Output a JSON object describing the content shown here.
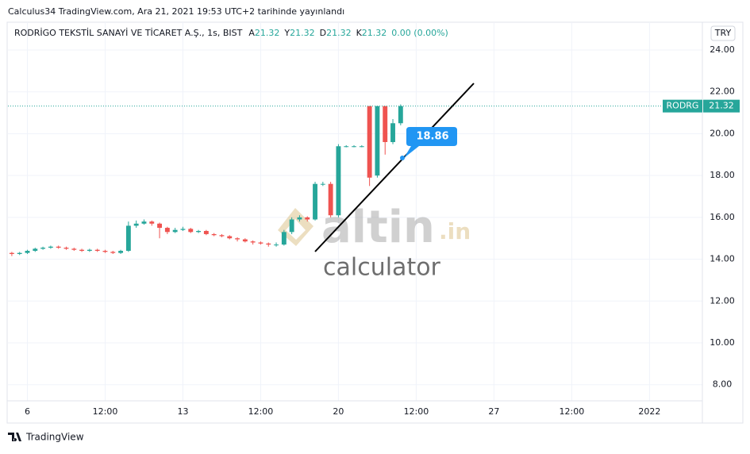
{
  "page": {
    "published": "Calculus34 TradingView.com, Ara 21, 2021 19:53 UTC+2 tarihinde yayınlandı",
    "brand": "TradingView"
  },
  "chart_data": {
    "type": "candlestick",
    "title": "RODRİGO TEKSTİL SANAYİ VE TİCARET A.Ş., 1s, BIST",
    "ohlc_legend": [
      {
        "label": "A",
        "value": "21.32"
      },
      {
        "label": "Y",
        "value": "21.32"
      },
      {
        "label": "D",
        "value": "21.32"
      },
      {
        "label": "K",
        "value": "21.32"
      }
    ],
    "change": "0.00 (0.00%)",
    "currency": "TRY",
    "symbol": "RODRG",
    "up_color": "#26a69a",
    "down_color": "#ef5350",
    "open": [
      14.3,
      14.25,
      14.3,
      14.4,
      14.5,
      14.55,
      14.6,
      14.55,
      14.5,
      14.45,
      14.4,
      14.45,
      14.4,
      14.35,
      14.3,
      14.4,
      15.6,
      15.7,
      15.8,
      15.7,
      15.5,
      15.3,
      15.4,
      15.45,
      15.3,
      15.35,
      15.2,
      15.15,
      15.1,
      15.0,
      14.95,
      14.85,
      14.8,
      14.75,
      14.7,
      14.7,
      15.3,
      15.9,
      16.0,
      15.9,
      17.6,
      17.6,
      16.1,
      19.4,
      19.4,
      19.4,
      21.32,
      18.0,
      21.32,
      19.6,
      20.5
    ],
    "high": [
      14.35,
      14.35,
      14.45,
      14.55,
      14.6,
      14.65,
      14.65,
      14.6,
      14.55,
      14.5,
      14.5,
      14.5,
      14.45,
      14.4,
      14.45,
      15.8,
      15.85,
      15.9,
      15.85,
      15.75,
      15.55,
      15.5,
      15.55,
      15.5,
      15.4,
      15.4,
      15.25,
      15.2,
      15.15,
      15.05,
      15.0,
      14.9,
      14.85,
      14.8,
      14.8,
      15.4,
      16.0,
      16.1,
      16.05,
      17.7,
      17.7,
      17.7,
      19.5,
      19.45,
      19.45,
      19.45,
      21.32,
      21.32,
      21.32,
      20.7,
      21.4
    ],
    "low": [
      14.15,
      14.2,
      14.25,
      14.35,
      14.45,
      14.5,
      14.5,
      14.45,
      14.4,
      14.35,
      14.35,
      14.35,
      14.3,
      14.25,
      14.25,
      14.35,
      15.5,
      15.65,
      15.6,
      15.0,
      15.2,
      15.25,
      15.35,
      15.25,
      15.25,
      15.15,
      15.1,
      15.05,
      14.95,
      14.85,
      14.8,
      14.7,
      14.7,
      14.6,
      14.6,
      14.65,
      15.2,
      15.8,
      15.8,
      15.85,
      17.5,
      16.0,
      16.0,
      19.35,
      19.35,
      19.35,
      17.5,
      17.9,
      19.0,
      19.5,
      20.4
    ],
    "close": [
      14.25,
      14.3,
      14.4,
      14.5,
      14.55,
      14.6,
      14.55,
      14.5,
      14.45,
      14.4,
      14.45,
      14.4,
      14.35,
      14.3,
      14.4,
      15.6,
      15.7,
      15.8,
      15.7,
      15.5,
      15.3,
      15.4,
      15.45,
      15.3,
      15.35,
      15.2,
      15.15,
      15.1,
      15.0,
      14.95,
      14.85,
      14.8,
      14.75,
      14.7,
      14.7,
      15.3,
      15.9,
      16.0,
      15.9,
      17.6,
      17.6,
      16.1,
      19.4,
      19.4,
      19.4,
      19.4,
      17.9,
      21.32,
      19.6,
      20.5,
      21.32
    ],
    "xlim": [
      -0.5,
      88.8
    ],
    "xticks": [
      {
        "value": 2,
        "label": "6"
      },
      {
        "value": 12,
        "label": "12:00"
      },
      {
        "value": 22,
        "label": "13"
      },
      {
        "value": 32,
        "label": "12:00"
      },
      {
        "value": 42,
        "label": "20"
      },
      {
        "value": 52,
        "label": "12:00"
      },
      {
        "value": 62,
        "label": "27"
      },
      {
        "value": 72,
        "label": "12:00"
      },
      {
        "value": 82,
        "label": "2022"
      }
    ],
    "ylim": [
      7.23,
      24.57
    ],
    "yticks": [
      {
        "value": 8,
        "label": "8.00"
      },
      {
        "value": 10,
        "label": "10.00"
      },
      {
        "value": 12,
        "label": "12.00"
      },
      {
        "value": 14,
        "label": "14.00"
      },
      {
        "value": 16,
        "label": "16.00"
      },
      {
        "value": 18,
        "label": "18.00"
      },
      {
        "value": 20,
        "label": "20.00"
      },
      {
        "value": 22,
        "label": "22.00"
      },
      {
        "value": 24,
        "label": "24.00"
      }
    ],
    "grid": true,
    "annotation": "18.86",
    "watermark": {
      "brand": "altin",
      "domain": ".in",
      "sub": "calculator"
    }
  }
}
